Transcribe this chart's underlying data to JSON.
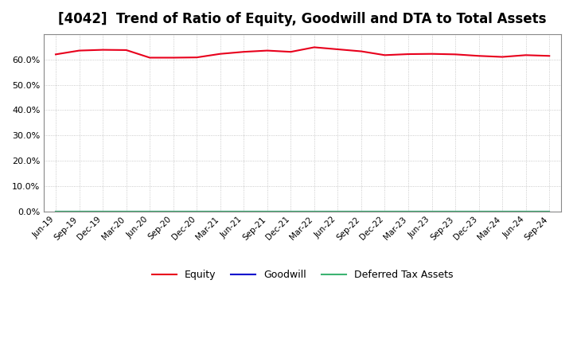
{
  "title": "[4042]  Trend of Ratio of Equity, Goodwill and DTA to Total Assets",
  "x_labels": [
    "Jun-19",
    "Sep-19",
    "Dec-19",
    "Mar-20",
    "Jun-20",
    "Sep-20",
    "Dec-20",
    "Mar-21",
    "Jun-21",
    "Sep-21",
    "Dec-21",
    "Mar-22",
    "Jun-22",
    "Sep-22",
    "Dec-22",
    "Mar-23",
    "Jun-23",
    "Sep-23",
    "Dec-23",
    "Mar-24",
    "Jun-24",
    "Sep-24"
  ],
  "equity": [
    0.62,
    0.635,
    0.638,
    0.637,
    0.607,
    0.607,
    0.608,
    0.622,
    0.63,
    0.635,
    0.63,
    0.648,
    0.64,
    0.632,
    0.617,
    0.621,
    0.622,
    0.62,
    0.614,
    0.61,
    0.617,
    0.614
  ],
  "goodwill": [
    0.0,
    0.0,
    0.0,
    0.0,
    0.0,
    0.0,
    0.0,
    0.0,
    0.0,
    0.0,
    0.0,
    0.0,
    0.0,
    0.0,
    0.0,
    0.0,
    0.0,
    0.0,
    0.0,
    0.0,
    0.0,
    0.0
  ],
  "dta": [
    0.0,
    0.0,
    0.0,
    0.0,
    0.0,
    0.0,
    0.0,
    0.0,
    0.0,
    0.0,
    0.0,
    0.0,
    0.0,
    0.0,
    0.0,
    0.0,
    0.0,
    0.0,
    0.0,
    0.0,
    0.0,
    0.0
  ],
  "equity_color": "#e8001c",
  "goodwill_color": "#0000cd",
  "dta_color": "#3cb371",
  "background_color": "#ffffff",
  "plot_bg_color": "#ffffff",
  "grid_color": "#bbbbbb",
  "ylim": [
    0.0,
    0.7
  ],
  "yticks": [
    0.0,
    0.1,
    0.2,
    0.3,
    0.4,
    0.5,
    0.6
  ],
  "title_fontsize": 12,
  "legend_labels": [
    "Equity",
    "Goodwill",
    "Deferred Tax Assets"
  ]
}
